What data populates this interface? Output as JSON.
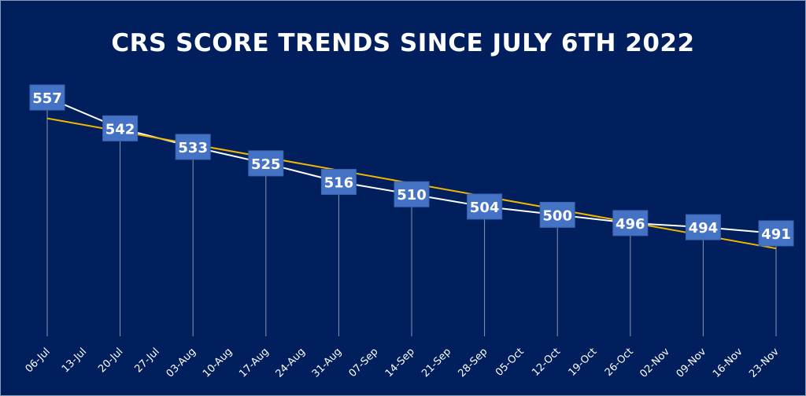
{
  "chart_data": {
    "type": "line",
    "title": "CRS SCORE TRENDS SINCE JULY 6TH 2022",
    "xlabel": "",
    "ylabel": "",
    "x_tick_labels": [
      "06-Jul",
      "13-Jul",
      "20-Jul",
      "27-Jul",
      "03-Aug",
      "10-Aug",
      "17-Aug",
      "24-Aug",
      "31-Aug",
      "07-Sep",
      "14-Sep",
      "21-Sep",
      "28-Sep",
      "05-Oct",
      "12-Oct",
      "19-Oct",
      "26-Oct",
      "02-Nov",
      "09-Nov",
      "16-Nov",
      "23-Nov"
    ],
    "x": [
      "06-Jul",
      "20-Jul",
      "03-Aug",
      "17-Aug",
      "31-Aug",
      "14-Sep",
      "28-Sep",
      "12-Oct",
      "26-Oct",
      "09-Nov",
      "23-Nov"
    ],
    "series": [
      {
        "values": [
          557,
          542,
          533,
          525,
          516,
          510,
          504,
          500,
          496,
          494,
          491
        ]
      }
    ],
    "trendline": "linear",
    "data_labels": true,
    "ylim": [
      441,
      570
    ],
    "grid": false,
    "colors": {
      "background": "#001f5c",
      "line": "#ffffff",
      "trendline": "#f2b600",
      "label_box": "#4472c4",
      "drop_lines": "#8a96b4"
    }
  }
}
